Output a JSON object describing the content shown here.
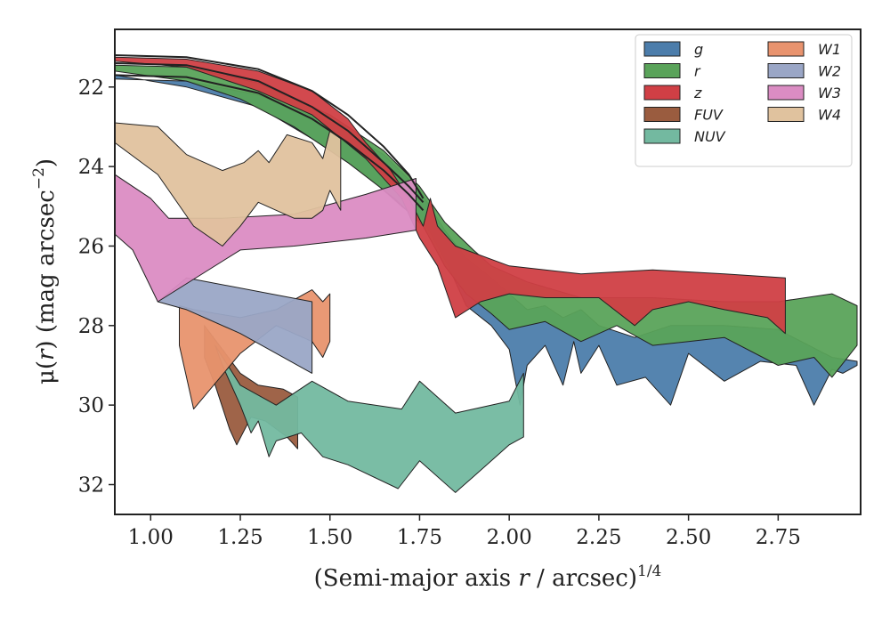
{
  "chart_data": {
    "type": "area",
    "title": "",
    "xlabel": {
      "prefix": "(Semi-major axis ",
      "var": "r",
      "suffix": " / arcsec)",
      "sup": "1/4"
    },
    "ylabel": {
      "prefix": "μ(",
      "var": "r",
      "suffix": ") (mag arcsec",
      "sup": "−2",
      "end": ")"
    },
    "xlim": [
      0.9,
      2.98
    ],
    "ylim": [
      32.75,
      20.55
    ],
    "y_inverted": true,
    "xticks": [
      "1.00",
      "1.25",
      "1.50",
      "1.75",
      "2.00",
      "2.25",
      "2.50",
      "2.75"
    ],
    "xtick_values": [
      1.0,
      1.25,
      1.5,
      1.75,
      2.0,
      2.25,
      2.5,
      2.75
    ],
    "yticks": [
      "22",
      "24",
      "26",
      "28",
      "30",
      "32"
    ],
    "ytick_values": [
      22,
      24,
      26,
      28,
      30,
      32
    ],
    "grid": false,
    "legend_position": "top-right",
    "legend_columns": 2,
    "series": [
      {
        "name": "g",
        "color": "#4c7dab",
        "upper": [
          [
            0.9,
            21.8
          ],
          [
            1.1,
            21.85
          ],
          [
            1.3,
            22.2
          ],
          [
            1.5,
            22.9
          ],
          [
            1.65,
            23.7
          ],
          [
            1.75,
            24.6
          ],
          [
            1.82,
            25.6
          ],
          [
            1.88,
            26.3
          ],
          [
            1.95,
            26.8
          ],
          [
            2.0,
            27.2
          ],
          [
            2.05,
            27.6
          ],
          [
            2.1,
            27.5
          ],
          [
            2.15,
            27.8
          ],
          [
            2.2,
            27.6
          ],
          [
            2.25,
            28.0
          ],
          [
            2.35,
            28.3
          ],
          [
            2.45,
            28.0
          ],
          [
            2.6,
            28.0
          ],
          [
            2.75,
            28.1
          ],
          [
            2.9,
            28.8
          ],
          [
            2.97,
            28.9
          ]
        ],
        "lower": [
          [
            2.97,
            29.0
          ],
          [
            2.93,
            29.2
          ],
          [
            2.9,
            29.1
          ],
          [
            2.85,
            30.0
          ],
          [
            2.8,
            29.0
          ],
          [
            2.7,
            28.9
          ],
          [
            2.6,
            29.4
          ],
          [
            2.5,
            28.7
          ],
          [
            2.45,
            30.0
          ],
          [
            2.38,
            29.3
          ],
          [
            2.3,
            29.5
          ],
          [
            2.25,
            28.5
          ],
          [
            2.2,
            29.2
          ],
          [
            2.18,
            28.4
          ],
          [
            2.15,
            29.5
          ],
          [
            2.1,
            28.5
          ],
          [
            2.05,
            29.0
          ],
          [
            2.03,
            30.0
          ],
          [
            2.0,
            28.6
          ],
          [
            1.95,
            28.0
          ],
          [
            1.88,
            27.5
          ],
          [
            1.83,
            26.5
          ],
          [
            1.77,
            25.5
          ],
          [
            1.7,
            25.0
          ],
          [
            1.6,
            24.2
          ],
          [
            1.45,
            23.3
          ],
          [
            1.3,
            22.5
          ],
          [
            1.1,
            22.0
          ],
          [
            0.9,
            21.7
          ]
        ]
      },
      {
        "name": "r",
        "color": "#5aa35a",
        "upper": [
          [
            0.9,
            21.45
          ],
          [
            1.1,
            21.5
          ],
          [
            1.3,
            21.9
          ],
          [
            1.5,
            22.7
          ],
          [
            1.65,
            23.6
          ],
          [
            1.75,
            24.5
          ],
          [
            1.82,
            25.4
          ],
          [
            1.9,
            26.1
          ],
          [
            1.95,
            26.5
          ],
          [
            2.05,
            26.9
          ],
          [
            2.2,
            27.3
          ],
          [
            2.4,
            27.3
          ],
          [
            2.6,
            27.4
          ],
          [
            2.75,
            27.4
          ],
          [
            2.9,
            27.2
          ],
          [
            2.97,
            27.5
          ]
        ],
        "lower": [
          [
            2.97,
            28.5
          ],
          [
            2.9,
            29.3
          ],
          [
            2.85,
            28.8
          ],
          [
            2.75,
            29.0
          ],
          [
            2.6,
            28.3
          ],
          [
            2.5,
            28.4
          ],
          [
            2.4,
            28.5
          ],
          [
            2.3,
            28.0
          ],
          [
            2.2,
            28.4
          ],
          [
            2.1,
            27.9
          ],
          [
            2.0,
            28.1
          ],
          [
            1.95,
            27.7
          ],
          [
            1.88,
            27.2
          ],
          [
            1.82,
            26.5
          ],
          [
            1.76,
            25.5
          ],
          [
            1.68,
            24.8
          ],
          [
            1.55,
            23.9
          ],
          [
            1.4,
            23.0
          ],
          [
            1.25,
            22.3
          ],
          [
            1.1,
            21.85
          ],
          [
            0.9,
            21.6
          ]
        ]
      },
      {
        "name": "z",
        "color": "#d03f45",
        "upper": [
          [
            0.9,
            21.25
          ],
          [
            1.1,
            21.3
          ],
          [
            1.3,
            21.6
          ],
          [
            1.45,
            22.1
          ],
          [
            1.55,
            22.8
          ],
          [
            1.6,
            23.4
          ],
          [
            1.67,
            24.1
          ],
          [
            1.72,
            24.8
          ],
          [
            1.76,
            25.5
          ],
          [
            1.78,
            24.8
          ],
          [
            1.8,
            25.5
          ],
          [
            1.85,
            26.0
          ],
          [
            2.0,
            26.5
          ],
          [
            2.2,
            26.7
          ],
          [
            2.4,
            26.6
          ],
          [
            2.6,
            26.7
          ],
          [
            2.77,
            26.8
          ]
        ],
        "lower": [
          [
            2.77,
            28.2
          ],
          [
            2.72,
            27.8
          ],
          [
            2.6,
            27.6
          ],
          [
            2.5,
            27.4
          ],
          [
            2.4,
            27.6
          ],
          [
            2.35,
            28.0
          ],
          [
            2.25,
            27.3
          ],
          [
            2.1,
            27.3
          ],
          [
            2.0,
            27.2
          ],
          [
            1.92,
            27.4
          ],
          [
            1.85,
            27.8
          ],
          [
            1.8,
            26.5
          ],
          [
            1.75,
            25.8
          ],
          [
            1.7,
            24.8
          ],
          [
            1.6,
            23.8
          ],
          [
            1.45,
            22.7
          ],
          [
            1.3,
            22.1
          ],
          [
            1.1,
            21.5
          ],
          [
            0.9,
            21.35
          ]
        ]
      },
      {
        "name": "FUV",
        "color": "#9a5c3f",
        "upper": [
          [
            1.15,
            28.0
          ],
          [
            1.2,
            28.6
          ],
          [
            1.25,
            29.2
          ],
          [
            1.3,
            29.5
          ],
          [
            1.37,
            29.6
          ],
          [
            1.41,
            29.8
          ]
        ],
        "lower": [
          [
            1.41,
            31.1
          ],
          [
            1.38,
            30.8
          ],
          [
            1.32,
            30.4
          ],
          [
            1.28,
            30.3
          ],
          [
            1.24,
            31.0
          ],
          [
            1.22,
            30.6
          ],
          [
            1.18,
            29.5
          ],
          [
            1.15,
            28.8
          ]
        ]
      },
      {
        "name": "NUV",
        "color": "#73b9a0",
        "upper": [
          [
            1.18,
            28.5
          ],
          [
            1.25,
            29.5
          ],
          [
            1.35,
            30.0
          ],
          [
            1.45,
            29.4
          ],
          [
            1.55,
            29.9
          ],
          [
            1.7,
            30.1
          ],
          [
            1.75,
            29.4
          ],
          [
            1.85,
            30.2
          ],
          [
            2.0,
            29.9
          ],
          [
            2.04,
            29.2
          ]
        ],
        "lower": [
          [
            2.04,
            30.8
          ],
          [
            2.0,
            31.0
          ],
          [
            1.9,
            31.8
          ],
          [
            1.85,
            32.2
          ],
          [
            1.75,
            31.4
          ],
          [
            1.69,
            32.1
          ],
          [
            1.55,
            31.5
          ],
          [
            1.48,
            31.3
          ],
          [
            1.42,
            30.7
          ],
          [
            1.35,
            30.9
          ],
          [
            1.33,
            31.3
          ],
          [
            1.3,
            30.4
          ],
          [
            1.28,
            30.7
          ],
          [
            1.25,
            30.0
          ],
          [
            1.2,
            29.0
          ]
        ]
      },
      {
        "name": "W1",
        "color": "#e8936e",
        "upper": [
          [
            1.08,
            27.5
          ],
          [
            1.12,
            27.6
          ],
          [
            1.25,
            27.8
          ],
          [
            1.35,
            27.6
          ],
          [
            1.45,
            27.1
          ],
          [
            1.48,
            27.4
          ],
          [
            1.5,
            27.2
          ]
        ],
        "lower": [
          [
            1.5,
            28.4
          ],
          [
            1.48,
            28.8
          ],
          [
            1.45,
            28.4
          ],
          [
            1.35,
            28.0
          ],
          [
            1.25,
            28.7
          ],
          [
            1.12,
            30.1
          ],
          [
            1.08,
            28.5
          ]
        ]
      },
      {
        "name": "W2",
        "color": "#9aa6c6",
        "upper": [
          [
            1.02,
            27.4
          ],
          [
            1.1,
            26.8
          ],
          [
            1.45,
            27.4
          ]
        ],
        "lower": [
          [
            1.45,
            29.2
          ],
          [
            1.25,
            28.2
          ],
          [
            1.1,
            27.6
          ],
          [
            1.02,
            27.4
          ]
        ]
      },
      {
        "name": "W3",
        "color": "#db8cc3",
        "upper": [
          [
            0.9,
            24.2
          ],
          [
            1.0,
            24.8
          ],
          [
            1.05,
            25.3
          ],
          [
            1.2,
            25.3
          ],
          [
            1.4,
            25.2
          ],
          [
            1.6,
            24.7
          ],
          [
            1.74,
            24.3
          ]
        ],
        "lower": [
          [
            1.74,
            25.6
          ],
          [
            1.6,
            25.8
          ],
          [
            1.4,
            26.0
          ],
          [
            1.25,
            26.1
          ],
          [
            1.02,
            27.4
          ],
          [
            0.95,
            26.1
          ],
          [
            0.9,
            25.7
          ]
        ]
      },
      {
        "name": "W4",
        "color": "#e0c29e",
        "upper": [
          [
            0.9,
            22.9
          ],
          [
            1.02,
            23.0
          ],
          [
            1.1,
            23.7
          ],
          [
            1.2,
            24.1
          ],
          [
            1.26,
            23.9
          ],
          [
            1.3,
            23.6
          ],
          [
            1.33,
            23.9
          ],
          [
            1.38,
            23.2
          ],
          [
            1.45,
            23.4
          ],
          [
            1.48,
            23.8
          ],
          [
            1.5,
            23.1
          ],
          [
            1.53,
            23.3
          ]
        ],
        "lower": [
          [
            1.53,
            25.1
          ],
          [
            1.5,
            24.6
          ],
          [
            1.48,
            25.1
          ],
          [
            1.45,
            25.3
          ],
          [
            1.4,
            25.3
          ],
          [
            1.35,
            25.1
          ],
          [
            1.3,
            24.9
          ],
          [
            1.25,
            25.5
          ],
          [
            1.2,
            26.0
          ],
          [
            1.12,
            25.5
          ],
          [
            1.02,
            24.2
          ],
          [
            0.9,
            23.4
          ]
        ]
      }
    ],
    "profile_lines": [
      [
        [
          0.9,
          21.2
        ],
        [
          1.1,
          21.25
        ],
        [
          1.3,
          21.55
        ],
        [
          1.45,
          22.1
        ],
        [
          1.55,
          22.7
        ],
        [
          1.65,
          23.5
        ],
        [
          1.72,
          24.2
        ],
        [
          1.76,
          24.8
        ]
      ],
      [
        [
          0.9,
          21.4
        ],
        [
          1.1,
          21.45
        ],
        [
          1.3,
          21.85
        ],
        [
          1.45,
          22.5
        ],
        [
          1.55,
          23.1
        ],
        [
          1.65,
          23.9
        ],
        [
          1.72,
          24.5
        ],
        [
          1.76,
          24.9
        ]
      ],
      [
        [
          0.9,
          21.7
        ],
        [
          1.1,
          21.75
        ],
        [
          1.3,
          22.15
        ],
        [
          1.45,
          22.8
        ],
        [
          1.55,
          23.4
        ],
        [
          1.65,
          24.1
        ],
        [
          1.72,
          24.7
        ],
        [
          1.76,
          25.1
        ]
      ]
    ]
  }
}
